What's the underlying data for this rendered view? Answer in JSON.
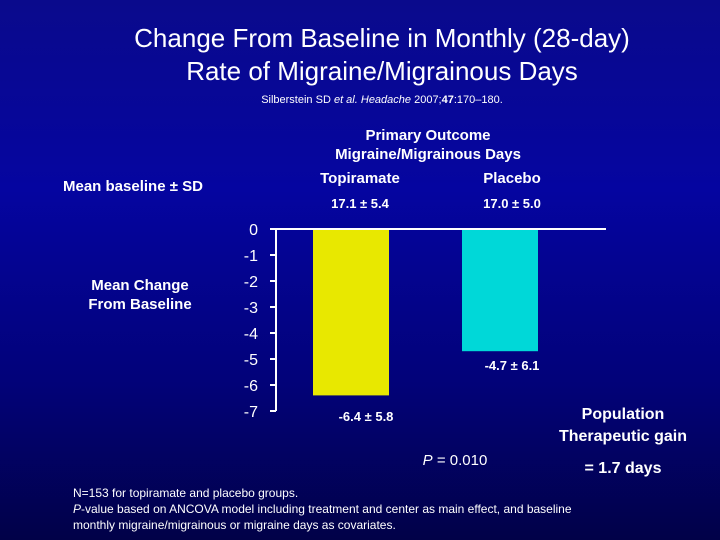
{
  "title": {
    "line1": "Change From Baseline in Monthly (28-day)",
    "line2": "Rate of Migraine/Migrainous Days"
  },
  "citation": {
    "authors": "Silberstein SD ",
    "etal": "et al.",
    "journal": " Headache",
    "year": " 2007;",
    "volume": "47",
    "pages": ":170–180."
  },
  "primary_outcome": {
    "line1": "Primary Outcome",
    "line2": "Migraine/Migrainous Days"
  },
  "baseline": {
    "row_label": "Mean baseline ± SD",
    "topiramate_header": "Topiramate",
    "placebo_header": "Placebo",
    "topiramate_value": "17.1 ± 5.4",
    "placebo_value": "17.0 ± 5.0"
  },
  "mean_change_label": {
    "line1": "Mean Change",
    "line2": "From Baseline"
  },
  "p_value": {
    "prefix": "P",
    "text": " = 0.010"
  },
  "therapeutic_gain": {
    "line1": "Population",
    "line2": "Therapeutic gain",
    "value": "= 1.7 days"
  },
  "footnote": {
    "line1": "N=153 for topiramate and placebo groups.",
    "line2_prefix": "P",
    "line2_rest": "-value based on ANCOVA model including treatment and center as main effect, and baseline",
    "line3": "monthly migraine/migrainous or migraine days as covariates."
  },
  "chart_data": {
    "type": "bar",
    "categories": [
      "Topiramate",
      "Placebo"
    ],
    "values": [
      -6.4,
      -4.7
    ],
    "data_labels": [
      "-6.4 ± 5.8",
      "-4.7 ± 6.1"
    ],
    "colors": [
      "#e8e800",
      "#00d8d8"
    ],
    "ylim": [
      -7,
      0
    ],
    "yticks": [
      "0",
      "-1",
      "-2",
      "-3",
      "-4",
      "-5",
      "-6",
      "-7"
    ],
    "xlabel": "",
    "ylabel": "",
    "grid": false
  }
}
